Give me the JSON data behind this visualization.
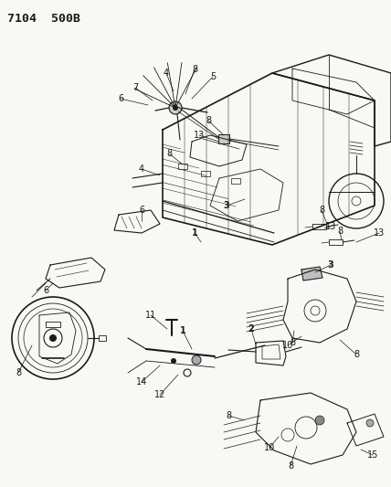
{
  "title": "7104  500B",
  "bg_color": "#f5f5f0",
  "line_color": "#1a1a1a",
  "fig_width": 4.28,
  "fig_height": 5.33,
  "dpi": 100,
  "label_fontsize": 7.0
}
